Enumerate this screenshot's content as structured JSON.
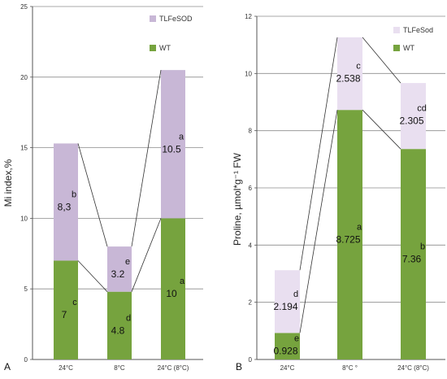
{
  "colors": {
    "wt": "#76a33e",
    "tl_a": "#c8b7d6",
    "tl_b": "#e9dff0",
    "grid": "#8c8c8c",
    "axis": "#555555"
  },
  "chart_data": [
    {
      "type": "bar",
      "stacked": true,
      "panel_label": "A",
      "ylabel": "Mi index,%",
      "ylim": [
        0,
        25
      ],
      "yticks": [
        "0",
        "5",
        "10",
        "15",
        "20",
        "25"
      ],
      "categories": [
        "24°C",
        "8°C",
        "24°C (8°C)"
      ],
      "grid": true,
      "legend_position": "top-right",
      "series": [
        {
          "name": "WT",
          "values": [
            7,
            4.8,
            10
          ],
          "labels": [
            "7",
            "4.8",
            "10"
          ],
          "letters": [
            "c",
            "d",
            "a"
          ]
        },
        {
          "name": "TLFeSOD",
          "values": [
            8.3,
            3.2,
            10.5
          ],
          "labels": [
            "8,3",
            "3.2",
            "10.5"
          ],
          "letters": [
            "b",
            "e",
            "a"
          ]
        }
      ]
    },
    {
      "type": "bar",
      "stacked": true,
      "panel_label": "B",
      "ylabel": "Proline, µmol*g⁻¹ FW",
      "ylim": [
        0,
        12
      ],
      "yticks": [
        "0",
        "2",
        "4",
        "6",
        "8",
        "10",
        "12"
      ],
      "categories": [
        "24°C",
        "8°C  °",
        "24°C (8°C)"
      ],
      "grid": true,
      "legend_position": "top-right",
      "series": [
        {
          "name": "WT",
          "values": [
            0.928,
            8.725,
            7.36
          ],
          "labels": [
            "0.928",
            "8.725",
            "7.36"
          ],
          "letters": [
            "e",
            "a",
            "b"
          ]
        },
        {
          "name": "TLFeSod",
          "values": [
            2.194,
            2.538,
            2.305
          ],
          "labels": [
            "2.194",
            "2.538",
            "2.305"
          ],
          "letters": [
            "d",
            "c",
            "cd"
          ]
        }
      ]
    }
  ]
}
